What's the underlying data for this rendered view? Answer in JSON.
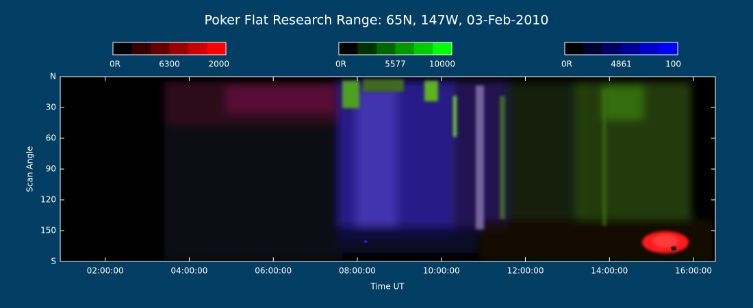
{
  "chart_data": {
    "type": "keogram",
    "title": "Poker Flat Research Range: 65N, 147W, 03-Feb-2010",
    "xlabel": "Time UT",
    "ylabel": "Scan Angle",
    "xlim": [
      0.93,
      16.52
    ],
    "xticks": [
      {
        "value": 2,
        "label": "02:00:00"
      },
      {
        "value": 4,
        "label": "04:00:00"
      },
      {
        "value": 6,
        "label": "06:00:00"
      },
      {
        "value": 8,
        "label": "08:00:00"
      },
      {
        "value": 10,
        "label": "10:00:00"
      },
      {
        "value": 12,
        "label": "12:00:00"
      },
      {
        "value": 14,
        "label": "14:00:00"
      },
      {
        "value": 16,
        "label": "16:00:00"
      }
    ],
    "ylim": [
      180,
      0
    ],
    "yticks": [
      {
        "value": 0,
        "label": "N"
      },
      30,
      60,
      90,
      120,
      150,
      {
        "value": 180,
        "label": "S"
      }
    ],
    "colorbars": [
      {
        "name": "6300",
        "color": "#ff0000",
        "min": {
          "value": 0,
          "label": "0R"
        },
        "max": 2000
      },
      {
        "name": "5577",
        "color": "#00ff00",
        "min": {
          "value": 0,
          "label": "0R"
        },
        "max": 10000
      },
      {
        "name": "4861",
        "color": "#0000ff",
        "min": {
          "value": 0,
          "label": "0R"
        },
        "max": 100
      }
    ]
  }
}
